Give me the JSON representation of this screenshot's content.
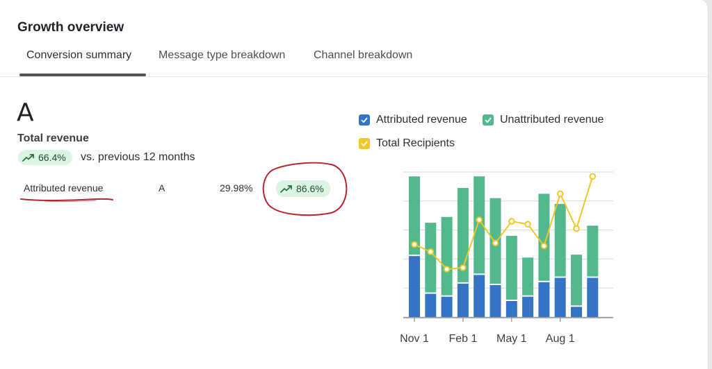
{
  "header": {
    "title": "Growth overview"
  },
  "tabs": [
    {
      "label": "Conversion summary",
      "active": true
    },
    {
      "label": "Message type breakdown",
      "active": false
    },
    {
      "label": "Channel breakdown",
      "active": false
    }
  ],
  "summary": {
    "big_value": "A",
    "label": "Total revenue",
    "change": "66.4%",
    "compare_text": "vs. previous 12 months"
  },
  "table": {
    "rows": [
      {
        "name": "Attributed revenue",
        "value": "A",
        "share": "29.98%",
        "change": "86.6%"
      }
    ]
  },
  "legend": {
    "attributed": "Attributed revenue",
    "unattributed": "Unattributed revenue",
    "recipients": "Total Recipients"
  },
  "colors": {
    "attributed": "#3574c4",
    "unattributed": "#52b98c",
    "recipients": "#f1c628",
    "pill_bg": "#dcf5e3",
    "annotation": "#b3262f"
  },
  "icons": {
    "trend": "trending-up-icon",
    "check": "check-icon"
  },
  "chart_data": {
    "type": "bar",
    "stacked": true,
    "x_tick_labels": [
      "Nov 1",
      "Feb 1",
      "May 1",
      "Aug 1"
    ],
    "x_tick_index": [
      0,
      3,
      6,
      9
    ],
    "ylim": [
      0,
      100
    ],
    "grid": true,
    "legend_position": "top",
    "series": [
      {
        "name": "Attributed revenue",
        "values": [
          42,
          16,
          14,
          23,
          29,
          22,
          11,
          14,
          24,
          27,
          7,
          27
        ]
      },
      {
        "name": "Unattributed revenue",
        "values": [
          55,
          49,
          55,
          66,
          68,
          60,
          45,
          27,
          61,
          51,
          36,
          36
        ]
      }
    ],
    "line_series": [
      {
        "name": "Total Recipients",
        "values": [
          50,
          45,
          33,
          34,
          67,
          51,
          66,
          64,
          49,
          85,
          61,
          97
        ]
      }
    ]
  }
}
